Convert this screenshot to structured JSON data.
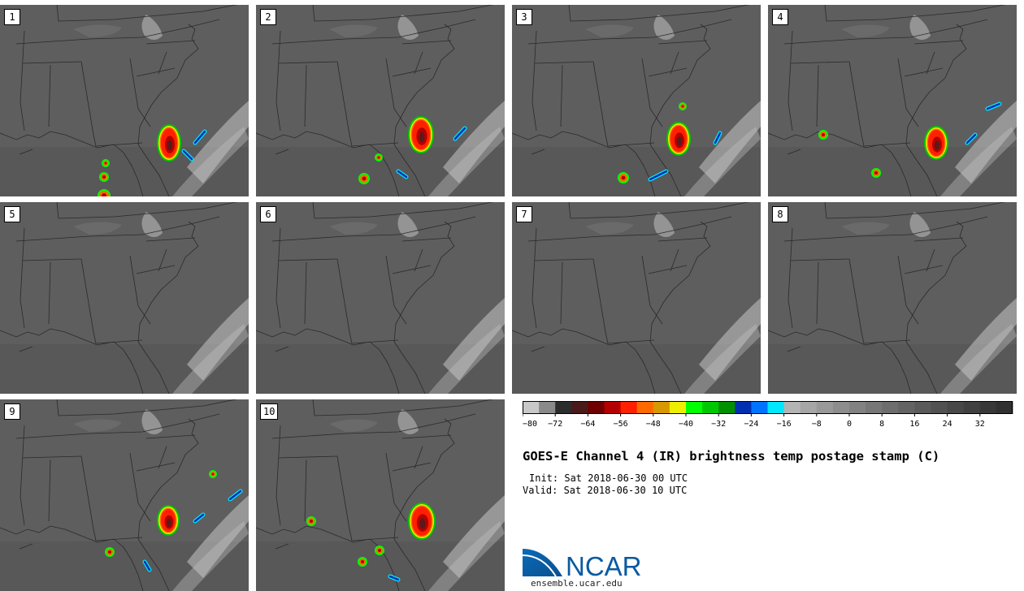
{
  "panels": [
    {
      "label": "1"
    },
    {
      "label": "2"
    },
    {
      "label": "3"
    },
    {
      "label": "4"
    },
    {
      "label": "5"
    },
    {
      "label": "6"
    },
    {
      "label": "7"
    },
    {
      "label": "8"
    },
    {
      "label": "9"
    },
    {
      "label": "10"
    }
  ],
  "legend": {
    "colors": [
      "#c8c8c8",
      "#8a8a8a",
      "#2c2c2c",
      "#4a1a1a",
      "#6e0000",
      "#b40000",
      "#ff2000",
      "#ff6a00",
      "#d89800",
      "#eeee00",
      "#00ff00",
      "#00c800",
      "#009000",
      "#0030b0",
      "#0074ff",
      "#00e8ff",
      "#b4b4b4",
      "#a6a6a6",
      "#999999",
      "#8d8d8d",
      "#828282",
      "#777777",
      "#6d6d6d",
      "#636363",
      "#5a5a5a",
      "#515151",
      "#484848",
      "#404040",
      "#383838",
      "#303030"
    ],
    "ticks": [
      "−80",
      "−72",
      "−64",
      "−56",
      "−48",
      "−40",
      "−32",
      "−24",
      "−16",
      "−8",
      "0",
      "8",
      "16",
      "24",
      "32"
    ]
  },
  "title": "GOES-E Channel 4 (IR) brightness temp postage stamp (C)",
  "init_line": "Init: Sat 2018-06-30 00 UTC",
  "valid_line": "Valid: Sat 2018-06-30 10 UTC",
  "logo_text": "NCAR",
  "url": "ensemble.ucar.edu"
}
